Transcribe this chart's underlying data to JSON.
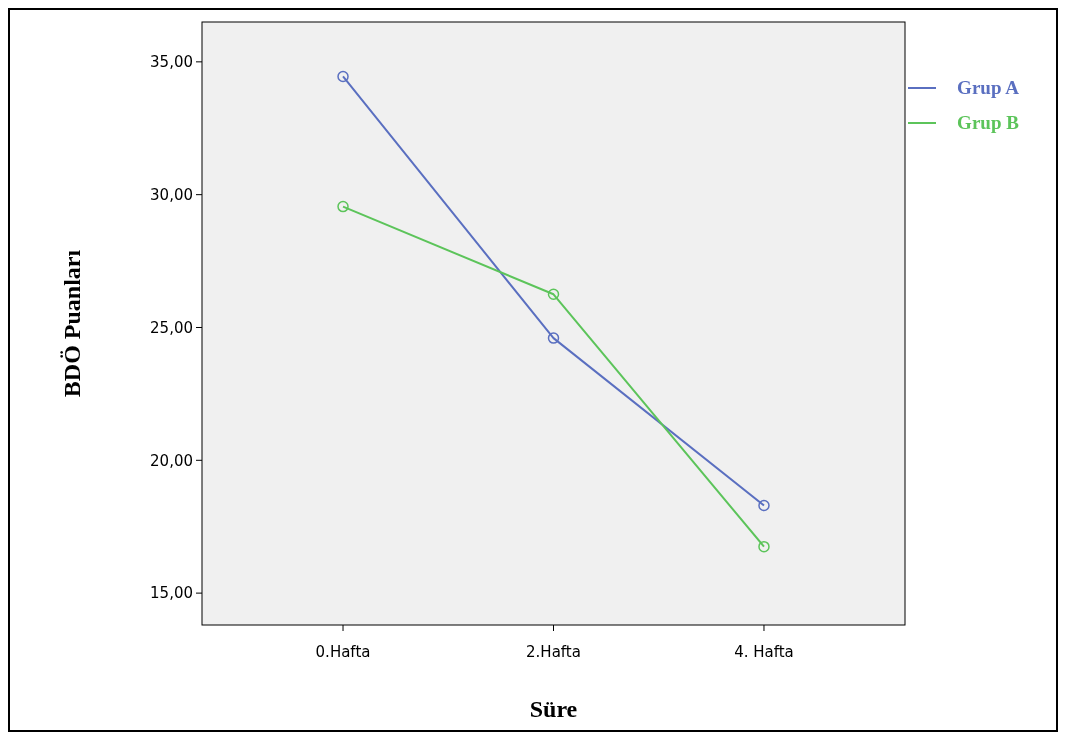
{
  "chart_data": {
    "type": "line",
    "xlabel": "Süre",
    "ylabel": "BDÖ Puanları",
    "categories": [
      "0.Hafta",
      "2.Hafta",
      "4. Hafta"
    ],
    "series": [
      {
        "name": "Grup A",
        "color": "#5a6fc0",
        "values": [
          34.45,
          24.6,
          18.3
        ]
      },
      {
        "name": "Grup B",
        "color": "#5cc45a",
        "values": [
          29.55,
          26.25,
          16.75
        ]
      }
    ],
    "ylim": [
      13.8,
      36.5
    ],
    "yticks": [
      {
        "value": 15,
        "label": "15,00"
      },
      {
        "value": 20,
        "label": "20,00"
      },
      {
        "value": 25,
        "label": "25,00"
      },
      {
        "value": 30,
        "label": "30,00"
      },
      {
        "value": 35,
        "label": "35,00"
      }
    ],
    "marker": "circle",
    "legend": "top right",
    "grid": false
  }
}
